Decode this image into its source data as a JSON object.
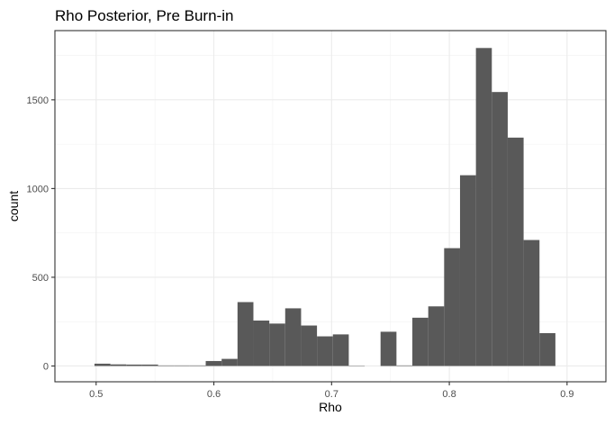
{
  "chart_data": {
    "type": "bar",
    "title": "Rho Posterior, Pre Burn-in",
    "xlabel": "Rho",
    "ylabel": "count",
    "xlim": [
      0.465,
      0.933
    ],
    "ylim": [
      -89,
      1890
    ],
    "x_ticks": [
      0.5,
      0.6,
      0.7,
      0.8,
      0.9
    ],
    "x_tick_labels": [
      "0.5",
      "0.6",
      "0.7",
      "0.8",
      "0.9"
    ],
    "y_ticks": [
      0,
      500,
      1000,
      1500
    ],
    "y_tick_labels": [
      "0",
      "500",
      "1000",
      "1500"
    ],
    "grid": true,
    "bar_color": "#595959",
    "bins": [
      {
        "x0": 0.4986,
        "x1": 0.5121,
        "count": 13
      },
      {
        "x0": 0.5121,
        "x1": 0.5256,
        "count": 9
      },
      {
        "x0": 0.5256,
        "x1": 0.5391,
        "count": 8
      },
      {
        "x0": 0.5391,
        "x1": 0.5526,
        "count": 8
      },
      {
        "x0": 0.5526,
        "x1": 0.5661,
        "count": 3
      },
      {
        "x0": 0.5661,
        "x1": 0.5796,
        "count": 3
      },
      {
        "x0": 0.5796,
        "x1": 0.5931,
        "count": 3
      },
      {
        "x0": 0.5931,
        "x1": 0.6066,
        "count": 28
      },
      {
        "x0": 0.6066,
        "x1": 0.6201,
        "count": 40
      },
      {
        "x0": 0.6201,
        "x1": 0.6336,
        "count": 360
      },
      {
        "x0": 0.6336,
        "x1": 0.6471,
        "count": 256
      },
      {
        "x0": 0.6471,
        "x1": 0.6606,
        "count": 239
      },
      {
        "x0": 0.6606,
        "x1": 0.6741,
        "count": 325
      },
      {
        "x0": 0.6741,
        "x1": 0.6876,
        "count": 228
      },
      {
        "x0": 0.6876,
        "x1": 0.7011,
        "count": 167
      },
      {
        "x0": 0.7011,
        "x1": 0.7146,
        "count": 178
      },
      {
        "x0": 0.7146,
        "x1": 0.7281,
        "count": 2
      },
      {
        "x0": 0.7281,
        "x1": 0.7416,
        "count": 0
      },
      {
        "x0": 0.7416,
        "x1": 0.7551,
        "count": 193
      },
      {
        "x0": 0.7551,
        "x1": 0.7686,
        "count": 3
      },
      {
        "x0": 0.7686,
        "x1": 0.7821,
        "count": 272
      },
      {
        "x0": 0.7821,
        "x1": 0.7956,
        "count": 336
      },
      {
        "x0": 0.7956,
        "x1": 0.8091,
        "count": 664
      },
      {
        "x0": 0.8091,
        "x1": 0.8226,
        "count": 1075
      },
      {
        "x0": 0.8226,
        "x1": 0.8361,
        "count": 1792
      },
      {
        "x0": 0.8361,
        "x1": 0.8496,
        "count": 1544
      },
      {
        "x0": 0.8496,
        "x1": 0.8631,
        "count": 1287
      },
      {
        "x0": 0.8631,
        "x1": 0.8766,
        "count": 710
      },
      {
        "x0": 0.8766,
        "x1": 0.8901,
        "count": 185
      }
    ]
  }
}
